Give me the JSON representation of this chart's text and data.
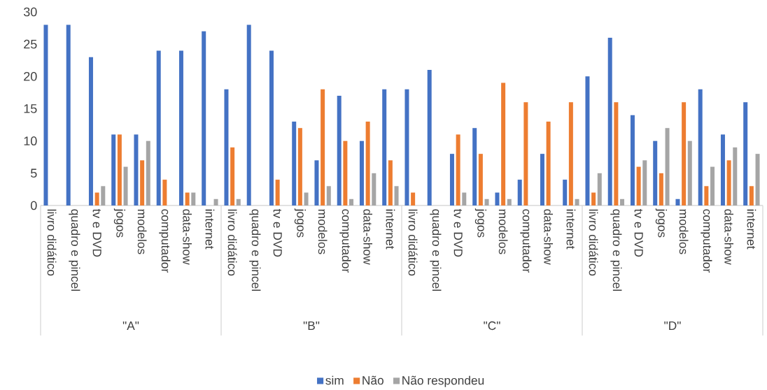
{
  "chart_data": {
    "type": "bar",
    "categories": [
      "livro didático",
      "quadro e pincel",
      "tv e DVD",
      "jogos",
      "modelos",
      "computador",
      "data-show",
      "internet",
      "livro didático",
      "quadro e pincel",
      "tv e DVD",
      "jogos",
      "modelos",
      "computador",
      "data-show",
      "internet",
      "livro didático",
      "quadro e pincel",
      "tv e DVD",
      "jogos",
      "modelos",
      "computador",
      "data-show",
      "internet",
      "livro didático",
      "quadro e pincel",
      "tv e DVD",
      "jogos",
      "modelos",
      "computador",
      "data-show",
      "internet"
    ],
    "series": [
      {
        "name": "sim",
        "color": "#4472c4",
        "values": [
          28,
          28,
          23,
          11,
          11,
          24,
          24,
          27,
          18,
          28,
          24,
          13,
          7,
          17,
          10,
          18,
          18,
          21,
          8,
          12,
          2,
          4,
          8,
          4,
          20,
          26,
          14,
          10,
          1,
          18,
          11,
          16
        ]
      },
      {
        "name": "Não",
        "color": "#ed7d31",
        "values": [
          null,
          null,
          2,
          11,
          7,
          4,
          2,
          null,
          9,
          null,
          4,
          12,
          18,
          10,
          13,
          7,
          2,
          null,
          11,
          8,
          19,
          16,
          13,
          16,
          2,
          16,
          6,
          5,
          16,
          3,
          7,
          3
        ]
      },
      {
        "name": "Não respondeu",
        "color": "#a5a5a5",
        "values": [
          null,
          null,
          3,
          6,
          10,
          null,
          2,
          1,
          1,
          null,
          null,
          2,
          3,
          1,
          5,
          3,
          null,
          null,
          2,
          1,
          1,
          null,
          null,
          1,
          5,
          1,
          7,
          12,
          10,
          6,
          9,
          8
        ]
      }
    ],
    "annotations": [
      "\"A\"",
      "\"B\"",
      "\"C\"",
      "\"D\""
    ],
    "ylim": [
      0,
      30
    ],
    "yticks": [
      0,
      5,
      10,
      15,
      20,
      25,
      30
    ],
    "grid": false,
    "legend": "bottom"
  }
}
